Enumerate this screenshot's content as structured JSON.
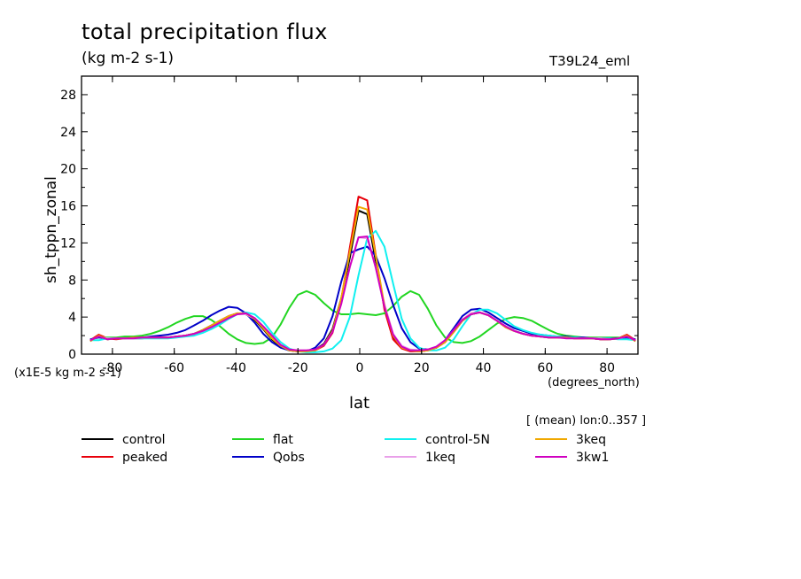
{
  "header": {
    "title": "total precipitation flux",
    "units": "(kg m-2 s-1)",
    "run_id": "T39L24_eml"
  },
  "axes": {
    "ylabel": "sh_tppn_zonal",
    "xlabel": "lat",
    "x_units": "(degrees_north)",
    "scale_note": "(x1E-5 kg m-2 s-1)",
    "mean_note": "[ (mean) lon:0..357 ]"
  },
  "chart_data": {
    "type": "line",
    "xlim": [
      -90,
      90
    ],
    "ylim": [
      0,
      30
    ],
    "x_ticks": [
      -80,
      -60,
      -40,
      -20,
      0,
      20,
      40,
      60,
      80
    ],
    "y_ticks": [
      0,
      4,
      8,
      12,
      16,
      20,
      24,
      28
    ],
    "x_tick_labels": [
      "-80",
      "-60",
      "-40",
      "-20",
      "0",
      "20",
      "40",
      "60",
      "80"
    ],
    "y_tick_labels": [
      "0",
      "4",
      "8",
      "12",
      "16",
      "20",
      "24",
      "28"
    ],
    "grid": false,
    "legend_position": "bottom",
    "x": [
      -87.2,
      -84.4,
      -81.6,
      -78.8,
      -76.0,
      -73.2,
      -70.4,
      -67.6,
      -64.8,
      -62.0,
      -59.2,
      -56.4,
      -53.6,
      -50.8,
      -48.0,
      -45.2,
      -42.4,
      -39.6,
      -36.8,
      -34.0,
      -31.2,
      -28.4,
      -25.6,
      -22.8,
      -20.0,
      -17.2,
      -14.4,
      -11.6,
      -8.8,
      -6.0,
      -3.2,
      -0.4,
      2.4,
      5.2,
      8.0,
      10.8,
      13.6,
      16.4,
      19.2,
      22.0,
      24.8,
      27.6,
      30.4,
      33.2,
      36.0,
      38.8,
      41.6,
      44.4,
      47.2,
      50.0,
      52.8,
      55.6,
      58.4,
      61.2,
      64.0,
      66.8,
      69.6,
      72.4,
      75.2,
      78.0,
      80.8,
      83.6,
      86.4,
      89.2
    ],
    "series": [
      {
        "name": "control",
        "color": "#000000",
        "values": [
          1.4,
          2.0,
          1.6,
          1.7,
          1.7,
          1.8,
          1.8,
          1.8,
          1.8,
          1.8,
          1.9,
          2.0,
          2.2,
          2.6,
          3.1,
          3.6,
          4.1,
          4.4,
          4.3,
          3.7,
          2.7,
          1.6,
          0.8,
          0.4,
          0.3,
          0.3,
          0.5,
          1.1,
          2.7,
          6.0,
          10.4,
          15.5,
          15.1,
          10.0,
          5.0,
          1.9,
          0.7,
          0.4,
          0.3,
          0.4,
          0.7,
          1.3,
          2.4,
          3.6,
          4.3,
          4.5,
          4.2,
          3.6,
          2.9,
          2.5,
          2.2,
          2.0,
          1.9,
          1.8,
          1.8,
          1.8,
          1.7,
          1.7,
          1.7,
          1.6,
          1.6,
          1.7,
          2.0,
          1.4
        ]
      },
      {
        "name": "peaked",
        "color": "#e8000b",
        "values": [
          1.5,
          2.1,
          1.7,
          1.6,
          1.7,
          1.7,
          1.7,
          1.8,
          1.8,
          1.8,
          1.9,
          2.0,
          2.2,
          2.5,
          3.0,
          3.6,
          4.1,
          4.4,
          4.3,
          3.8,
          2.8,
          1.7,
          0.9,
          0.5,
          0.3,
          0.3,
          0.4,
          0.9,
          2.3,
          5.8,
          11.5,
          17.0,
          16.6,
          10.7,
          4.8,
          1.6,
          0.6,
          0.3,
          0.3,
          0.4,
          0.7,
          1.3,
          2.5,
          3.7,
          4.4,
          4.5,
          4.2,
          3.6,
          2.9,
          2.5,
          2.2,
          2.0,
          1.9,
          1.8,
          1.8,
          1.8,
          1.7,
          1.7,
          1.7,
          1.6,
          1.6,
          1.7,
          2.1,
          1.5
        ]
      },
      {
        "name": "flat",
        "color": "#22d622",
        "values": [
          1.6,
          1.8,
          1.8,
          1.8,
          1.9,
          1.9,
          2.0,
          2.2,
          2.5,
          2.9,
          3.4,
          3.8,
          4.1,
          4.1,
          3.7,
          3.0,
          2.2,
          1.6,
          1.2,
          1.1,
          1.2,
          1.8,
          3.2,
          5.0,
          6.4,
          6.8,
          6.4,
          5.5,
          4.7,
          4.3,
          4.3,
          4.4,
          4.3,
          4.2,
          4.4,
          5.2,
          6.2,
          6.8,
          6.4,
          4.9,
          3.1,
          1.8,
          1.3,
          1.2,
          1.4,
          1.9,
          2.6,
          3.3,
          3.8,
          4.0,
          3.9,
          3.6,
          3.1,
          2.6,
          2.2,
          2.0,
          1.9,
          1.8,
          1.8,
          1.8,
          1.8,
          1.8,
          1.7,
          1.6
        ]
      },
      {
        "name": "Qobs",
        "color": "#0000c8",
        "values": [
          1.6,
          1.8,
          1.7,
          1.7,
          1.7,
          1.8,
          1.8,
          1.9,
          2.0,
          2.1,
          2.3,
          2.6,
          3.1,
          3.6,
          4.2,
          4.7,
          5.1,
          5.0,
          4.4,
          3.4,
          2.2,
          1.3,
          0.7,
          0.4,
          0.3,
          0.3,
          0.7,
          1.7,
          4.1,
          7.8,
          10.9,
          11.3,
          11.6,
          10.6,
          8.2,
          5.3,
          2.8,
          1.3,
          0.6,
          0.5,
          0.7,
          1.5,
          2.8,
          4.1,
          4.8,
          4.9,
          4.5,
          3.9,
          3.3,
          2.8,
          2.5,
          2.2,
          2.1,
          2.0,
          1.9,
          1.9,
          1.8,
          1.8,
          1.7,
          1.7,
          1.7,
          1.7,
          1.8,
          1.6
        ]
      },
      {
        "name": "control-5N",
        "color": "#10f0f0",
        "values": [
          1.5,
          1.5,
          1.7,
          1.7,
          1.7,
          1.7,
          1.7,
          1.7,
          1.7,
          1.7,
          1.8,
          1.9,
          2.0,
          2.3,
          2.7,
          3.2,
          3.8,
          4.3,
          4.5,
          4.3,
          3.5,
          2.3,
          1.3,
          0.6,
          0.3,
          0.2,
          0.2,
          0.3,
          0.6,
          1.5,
          4.0,
          8.5,
          12.5,
          13.3,
          11.6,
          7.6,
          3.8,
          1.7,
          0.7,
          0.4,
          0.4,
          0.7,
          1.6,
          3.0,
          4.3,
          4.8,
          4.8,
          4.4,
          3.7,
          3.0,
          2.6,
          2.3,
          2.1,
          2.0,
          1.9,
          1.8,
          1.8,
          1.7,
          1.7,
          1.7,
          1.7,
          1.6,
          1.6,
          1.5
        ]
      },
      {
        "name": "1keq",
        "color": "#e9a0e9",
        "values": [
          1.5,
          1.9,
          1.7,
          1.7,
          1.7,
          1.7,
          1.8,
          1.8,
          1.8,
          1.8,
          1.9,
          2.0,
          2.2,
          2.5,
          2.9,
          3.5,
          4.0,
          4.3,
          4.3,
          3.8,
          2.9,
          1.9,
          1.0,
          0.5,
          0.4,
          0.4,
          0.5,
          1.0,
          2.5,
          5.6,
          9.4,
          12.6,
          12.5,
          9.4,
          5.4,
          2.2,
          0.9,
          0.5,
          0.4,
          0.5,
          0.8,
          1.5,
          2.6,
          3.7,
          4.4,
          4.5,
          4.2,
          3.6,
          3.0,
          2.5,
          2.2,
          2.0,
          1.9,
          1.8,
          1.8,
          1.8,
          1.7,
          1.7,
          1.7,
          1.7,
          1.6,
          1.7,
          1.9,
          1.5
        ]
      },
      {
        "name": "3keq",
        "color": "#f0a800",
        "values": [
          1.4,
          2.0,
          1.6,
          1.7,
          1.7,
          1.8,
          1.8,
          1.8,
          1.8,
          1.8,
          1.9,
          2.0,
          2.2,
          2.6,
          3.1,
          3.6,
          4.1,
          4.4,
          4.4,
          3.8,
          2.8,
          1.7,
          0.9,
          0.4,
          0.3,
          0.3,
          0.4,
          1.0,
          2.5,
          6.0,
          11.0,
          15.9,
          15.6,
          10.6,
          5.2,
          2.0,
          0.7,
          0.4,
          0.3,
          0.4,
          0.7,
          1.3,
          2.4,
          3.6,
          4.3,
          4.5,
          4.2,
          3.6,
          2.9,
          2.5,
          2.2,
          2.0,
          1.9,
          1.8,
          1.8,
          1.8,
          1.7,
          1.7,
          1.7,
          1.6,
          1.6,
          1.7,
          2.0,
          1.4
        ]
      },
      {
        "name": "3kw1",
        "color": "#d000c0",
        "values": [
          1.5,
          1.9,
          1.6,
          1.7,
          1.7,
          1.7,
          1.8,
          1.8,
          1.8,
          1.8,
          1.9,
          2.0,
          2.2,
          2.5,
          2.9,
          3.4,
          3.9,
          4.3,
          4.4,
          3.9,
          3.0,
          2.0,
          1.0,
          0.5,
          0.4,
          0.4,
          0.5,
          1.0,
          2.4,
          5.4,
          9.4,
          12.6,
          12.7,
          9.3,
          5.1,
          2.1,
          0.8,
          0.4,
          0.4,
          0.5,
          0.8,
          1.5,
          2.6,
          3.7,
          4.3,
          4.5,
          4.2,
          3.6,
          3.0,
          2.5,
          2.2,
          2.0,
          1.9,
          1.8,
          1.8,
          1.7,
          1.7,
          1.7,
          1.7,
          1.6,
          1.6,
          1.7,
          1.9,
          1.5
        ]
      }
    ]
  }
}
